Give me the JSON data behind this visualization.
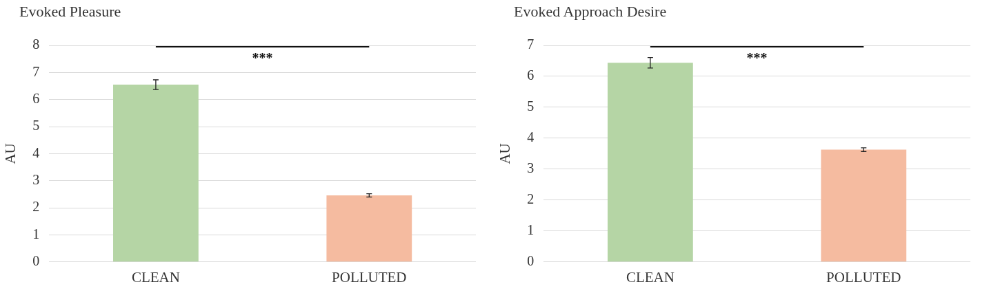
{
  "chart_data": [
    {
      "type": "bar",
      "title": "Evoked Pleasure",
      "ylabel": "AU",
      "categories": [
        "CLEAN",
        "POLLUTED"
      ],
      "values": [
        6.55,
        2.46
      ],
      "colors": [
        "#b5d5a5",
        "#f5bba0"
      ],
      "errors": [
        0.18,
        0.06
      ],
      "ylim": [
        0,
        8
      ],
      "yticks": [
        0,
        1,
        2,
        3,
        4,
        5,
        6,
        7,
        8
      ],
      "grid": "y",
      "legend": false,
      "annotations": [
        "***"
      ]
    },
    {
      "type": "bar",
      "title": "Evoked Approach Desire",
      "ylabel": "AU",
      "categories": [
        "CLEAN",
        "POLLUTED"
      ],
      "values": [
        6.44,
        3.63
      ],
      "colors": [
        "#b5d5a5",
        "#f5bba0"
      ],
      "errors": [
        0.17,
        0.06
      ],
      "ylim": [
        0,
        7
      ],
      "yticks": [
        0,
        1,
        2,
        3,
        4,
        5,
        6,
        7
      ],
      "grid": "y",
      "legend": false,
      "annotations": [
        "***"
      ]
    }
  ]
}
